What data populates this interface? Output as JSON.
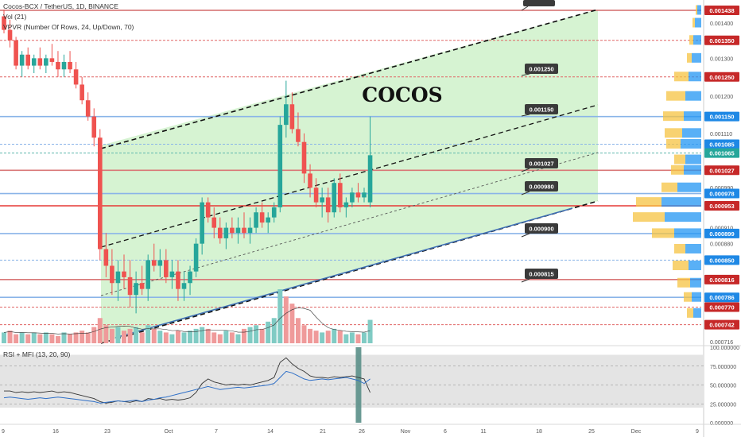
{
  "header": {
    "symbol_line": "Cocos-BCX / TetherUS, 1D, BINANCE",
    "vol_line": "Vol (21)",
    "vpvr_line": "VPVR (Number Of Rows, 24, Up/Down, 70)",
    "rsi_line": "RSI + MFI (13, 20, 90)"
  },
  "colors": {
    "up": "#26a69a",
    "down": "#ef5350",
    "channel_fill": "#c8efc3",
    "rsi_band": "#e4e4e4",
    "red_tag": "#c62828",
    "blue_tag": "#1e88e5",
    "teal_tag": "#26a69a",
    "callout_bg": "#3a3a3a"
  },
  "chart_data": {
    "type": "candlestick",
    "title": "COCOS",
    "x_tick_labels": [
      "9",
      "16",
      "23",
      "Oct",
      "7",
      "14",
      "21",
      "26",
      "Nov",
      "6",
      "11",
      "18",
      "25",
      "Dec",
      "9"
    ],
    "y_tick_labels": [
      "0.001400",
      "0.001300",
      "0.001200",
      "0.001110",
      "0.000990",
      "0.000910",
      "0.000880",
      "0.000716"
    ],
    "candles": [
      [
        0.00142,
        0.00144,
        0.00137,
        0.00138
      ],
      [
        0.00138,
        0.00141,
        0.00133,
        0.00135
      ],
      [
        0.00135,
        0.00136,
        0.00127,
        0.00128
      ],
      [
        0.00128,
        0.00132,
        0.00125,
        0.00131
      ],
      [
        0.00131,
        0.00133,
        0.00127,
        0.00128
      ],
      [
        0.00128,
        0.00131,
        0.00126,
        0.0013
      ],
      [
        0.0013,
        0.00133,
        0.00127,
        0.00128
      ],
      [
        0.00128,
        0.00131,
        0.00126,
        0.0013
      ],
      [
        0.0013,
        0.00134,
        0.00128,
        0.00129
      ],
      [
        0.00129,
        0.00132,
        0.00125,
        0.00127
      ],
      [
        0.00127,
        0.00131,
        0.00125,
        0.00129
      ],
      [
        0.00129,
        0.00132,
        0.00126,
        0.00127
      ],
      [
        0.00127,
        0.00129,
        0.00122,
        0.00123
      ],
      [
        0.00123,
        0.00125,
        0.00118,
        0.00119
      ],
      [
        0.00119,
        0.00121,
        0.00114,
        0.00115
      ],
      [
        0.00115,
        0.00117,
        0.00108,
        0.0011
      ],
      [
        0.0011,
        0.00112,
        0.00085,
        0.00087
      ],
      [
        0.00087,
        0.0009,
        0.00082,
        0.00084
      ],
      [
        0.00084,
        0.00087,
        0.00079,
        0.00081
      ],
      [
        0.00081,
        0.00085,
        0.00078,
        0.00083
      ],
      [
        0.00083,
        0.00086,
        0.0008,
        0.00082
      ],
      [
        0.00082,
        0.00085,
        0.00077,
        0.00079
      ],
      [
        0.00079,
        0.00083,
        0.00076,
        0.00081
      ],
      [
        0.00081,
        0.00084,
        0.00079,
        0.0008
      ],
      [
        0.0008,
        0.00086,
        0.00078,
        0.00085
      ],
      [
        0.00085,
        0.00088,
        0.00083,
        0.00084
      ],
      [
        0.00084,
        0.00087,
        0.00082,
        0.00085
      ],
      [
        0.00085,
        0.00087,
        0.00081,
        0.00082
      ],
      [
        0.00082,
        0.00085,
        0.0008,
        0.00083
      ],
      [
        0.00083,
        0.00085,
        0.00078,
        0.0008
      ],
      [
        0.0008,
        0.00083,
        0.00078,
        0.00081
      ],
      [
        0.00081,
        0.00084,
        0.00079,
        0.00083
      ],
      [
        0.00083,
        0.00089,
        0.00082,
        0.00088
      ],
      [
        0.00088,
        0.00097,
        0.00086,
        0.00096
      ],
      [
        0.00096,
        0.00097,
        0.00092,
        0.00093
      ],
      [
        0.00093,
        0.00095,
        0.00089,
        0.00091
      ],
      [
        0.00091,
        0.00093,
        0.00088,
        0.00089
      ],
      [
        0.00089,
        0.00092,
        0.00087,
        0.00091
      ],
      [
        0.00091,
        0.00093,
        0.00089,
        0.0009
      ],
      [
        0.0009,
        0.00093,
        0.00088,
        0.00091
      ],
      [
        0.00091,
        0.00094,
        0.00089,
        0.0009
      ],
      [
        0.0009,
        0.00093,
        0.00088,
        0.00091
      ],
      [
        0.00091,
        0.00095,
        0.0009,
        0.00094
      ],
      [
        0.00094,
        0.00096,
        0.00091,
        0.00092
      ],
      [
        0.00092,
        0.00094,
        0.0009,
        0.00093
      ],
      [
        0.00093,
        0.00096,
        0.00092,
        0.00095
      ],
      [
        0.00095,
        0.00115,
        0.00094,
        0.00113
      ],
      [
        0.00113,
        0.00124,
        0.0011,
        0.00118
      ],
      [
        0.00118,
        0.00121,
        0.00111,
        0.00112
      ],
      [
        0.00112,
        0.00116,
        0.00108,
        0.00109
      ],
      [
        0.00109,
        0.00111,
        0.001,
        0.00102
      ],
      [
        0.00102,
        0.00104,
        0.00097,
        0.00099
      ],
      [
        0.00099,
        0.00101,
        0.00095,
        0.00096
      ],
      [
        0.00096,
        0.00099,
        0.00093,
        0.00097
      ],
      [
        0.00097,
        0.00099,
        0.00092,
        0.00094
      ],
      [
        0.00094,
        0.00101,
        0.00093,
        0.001
      ],
      [
        0.001,
        0.00102,
        0.00094,
        0.00095
      ],
      [
        0.00095,
        0.00097,
        0.00093,
        0.00096
      ],
      [
        0.00096,
        0.00099,
        0.00095,
        0.00098
      ],
      [
        0.00098,
        0.001,
        0.00096,
        0.00097
      ],
      [
        0.00097,
        0.00099,
        0.00096,
        0.00098
      ],
      [
        0.00096,
        0.00115,
        0.00095,
        0.00106
      ]
    ],
    "volumes": [
      {
        "v": 6,
        "up": true
      },
      {
        "v": 7,
        "up": false
      },
      {
        "v": 5,
        "up": false
      },
      {
        "v": 6,
        "up": true
      },
      {
        "v": 5,
        "up": false
      },
      {
        "v": 6,
        "up": true
      },
      {
        "v": 5,
        "up": false
      },
      {
        "v": 6,
        "up": true
      },
      {
        "v": 5,
        "up": false
      },
      {
        "v": 4,
        "up": false
      },
      {
        "v": 6,
        "up": true
      },
      {
        "v": 5,
        "up": false
      },
      {
        "v": 6,
        "up": false
      },
      {
        "v": 7,
        "up": false
      },
      {
        "v": 6,
        "up": false
      },
      {
        "v": 9,
        "up": false
      },
      {
        "v": 14,
        "up": false
      },
      {
        "v": 10,
        "up": false
      },
      {
        "v": 8,
        "up": false
      },
      {
        "v": 9,
        "up": true
      },
      {
        "v": 7,
        "up": false
      },
      {
        "v": 8,
        "up": false
      },
      {
        "v": 9,
        "up": true
      },
      {
        "v": 6,
        "up": false
      },
      {
        "v": 10,
        "up": true
      },
      {
        "v": 8,
        "up": false
      },
      {
        "v": 7,
        "up": true
      },
      {
        "v": 6,
        "up": false
      },
      {
        "v": 5,
        "up": true
      },
      {
        "v": 7,
        "up": false
      },
      {
        "v": 6,
        "up": true
      },
      {
        "v": 7,
        "up": true
      },
      {
        "v": 8,
        "up": true
      },
      {
        "v": 9,
        "up": true
      },
      {
        "v": 8,
        "up": false
      },
      {
        "v": 6,
        "up": false
      },
      {
        "v": 5,
        "up": false
      },
      {
        "v": 7,
        "up": true
      },
      {
        "v": 6,
        "up": false
      },
      {
        "v": 5,
        "up": true
      },
      {
        "v": 8,
        "up": false
      },
      {
        "v": 9,
        "up": true
      },
      {
        "v": 10,
        "up": true
      },
      {
        "v": 8,
        "up": false
      },
      {
        "v": 12,
        "up": true
      },
      {
        "v": 14,
        "up": true
      },
      {
        "v": 30,
        "up": true
      },
      {
        "v": 26,
        "up": false
      },
      {
        "v": 22,
        "up": false
      },
      {
        "v": 14,
        "up": false
      },
      {
        "v": 10,
        "up": false
      },
      {
        "v": 8,
        "up": false
      },
      {
        "v": 7,
        "up": false
      },
      {
        "v": 6,
        "up": true
      },
      {
        "v": 7,
        "up": false
      },
      {
        "v": 8,
        "up": true
      },
      {
        "v": 7,
        "up": false
      },
      {
        "v": 5,
        "up": true
      },
      {
        "v": 6,
        "up": true
      },
      {
        "v": 5,
        "up": false
      },
      {
        "v": 6,
        "up": true
      },
      {
        "v": 13,
        "up": true
      }
    ],
    "vpvr": [
      {
        "price": 0.001438,
        "up": 5,
        "down": 2
      },
      {
        "price": 0.0014,
        "up": 8,
        "down": 3
      },
      {
        "price": 0.00135,
        "up": 10,
        "down": 5
      },
      {
        "price": 0.0013,
        "up": 12,
        "down": 6
      },
      {
        "price": 0.00125,
        "up": 16,
        "down": 18
      },
      {
        "price": 0.0012,
        "up": 20,
        "down": 24
      },
      {
        "price": 0.00115,
        "up": 22,
        "down": 26
      },
      {
        "price": 0.00111,
        "up": 24,
        "down": 22
      },
      {
        "price": 0.001085,
        "up": 26,
        "down": 18
      },
      {
        "price": 0.00105,
        "up": 20,
        "down": 14
      },
      {
        "price": 0.001027,
        "up": 22,
        "down": 16
      },
      {
        "price": 0.00099,
        "up": 30,
        "down": 20
      },
      {
        "price": 0.00096,
        "up": 50,
        "down": 32
      },
      {
        "price": 0.00093,
        "up": 46,
        "down": 40
      },
      {
        "price": 0.000899,
        "up": 34,
        "down": 28
      },
      {
        "price": 0.00087,
        "up": 20,
        "down": 14
      },
      {
        "price": 0.00084,
        "up": 16,
        "down": 20
      },
      {
        "price": 0.00081,
        "up": 14,
        "down": 16
      },
      {
        "price": 0.000786,
        "up": 12,
        "down": 10
      },
      {
        "price": 0.00076,
        "up": 10,
        "down": 8
      }
    ],
    "rsi": [
      42,
      42,
      40,
      41,
      40,
      41,
      40,
      41,
      42,
      40,
      41,
      40,
      38,
      36,
      34,
      32,
      28,
      26,
      27,
      29,
      28,
      27,
      29,
      28,
      32,
      31,
      32,
      30,
      31,
      30,
      31,
      33,
      40,
      52,
      58,
      54,
      52,
      50,
      51,
      50,
      51,
      50,
      52,
      54,
      56,
      60,
      80,
      86,
      78,
      72,
      68,
      62,
      60,
      60,
      59,
      61,
      60,
      61,
      62,
      60,
      58,
      40
    ],
    "mfi": [
      33,
      34,
      33,
      32,
      31,
      32,
      33,
      32,
      33,
      34,
      33,
      32,
      31,
      30,
      29,
      28,
      26,
      27,
      28,
      29,
      28,
      29,
      30,
      28,
      30,
      31,
      33,
      34,
      36,
      38,
      40,
      42,
      44,
      46,
      48,
      46,
      44,
      45,
      46,
      47,
      46,
      47,
      48,
      49,
      50,
      52,
      60,
      68,
      66,
      62,
      58,
      56,
      57,
      58,
      57,
      58,
      59,
      60,
      58,
      56,
      52,
      58
    ],
    "rsi_scale_labels": [
      "100.000000",
      "75.000000",
      "50.000000",
      "25.000000",
      "0.000000"
    ],
    "level_tags": [
      {
        "price": 0.001438,
        "label": "0.001438",
        "style": "red"
      },
      {
        "price": 0.00135,
        "label": "0.001350",
        "style": "red"
      },
      {
        "price": 0.00125,
        "label": "0.001250",
        "style": "red"
      },
      {
        "price": 0.00115,
        "label": "0.001150",
        "style": "blue"
      },
      {
        "price": 0.001085,
        "label": "0.001085",
        "style": "blue"
      },
      {
        "price": 0.001065,
        "label": "0.001065",
        "style": "teal"
      },
      {
        "price": 0.001027,
        "label": "0.001027",
        "style": "red"
      },
      {
        "price": 0.000978,
        "label": "0.000978",
        "style": "blue"
      },
      {
        "price": 0.000953,
        "label": "0.000953",
        "style": "red"
      },
      {
        "price": 0.000899,
        "label": "0.000899",
        "style": "blue"
      },
      {
        "price": 0.00085,
        "label": "0.000850",
        "style": "blue"
      },
      {
        "price": 0.000816,
        "label": "0.000816",
        "style": "red"
      },
      {
        "price": 0.000786,
        "label": "0.000786",
        "style": "blue"
      },
      {
        "price": 0.00077,
        "label": "0.000770",
        "style": "red"
      },
      {
        "price": 0.000742,
        "label": "0.000742",
        "style": "red"
      }
    ],
    "horizontal_lines": [
      {
        "price": 0.001438,
        "color": "#d36a6a",
        "dash": false
      },
      {
        "price": 0.00135,
        "color": "#e06666",
        "dash": true
      },
      {
        "price": 0.00125,
        "color": "#e06666",
        "dash": true
      },
      {
        "price": 0.00115,
        "color": "#8ab4e8",
        "dash": false
      },
      {
        "price": 0.001085,
        "color": "#8ab4e8",
        "dash": true
      },
      {
        "price": 0.001065,
        "color": "#5fb8ad",
        "dash": true
      },
      {
        "price": 0.001027,
        "color": "#d97777",
        "dash": false
      },
      {
        "price": 0.000978,
        "color": "#8ab4e8",
        "dash": false
      },
      {
        "price": 0.000953,
        "color": "#e53935",
        "dash": false
      },
      {
        "price": 0.000899,
        "color": "#8ab4e8",
        "dash": false
      },
      {
        "price": 0.00085,
        "color": "#8ab4e8",
        "dash": true
      },
      {
        "price": 0.000816,
        "color": "#d97777",
        "dash": false
      },
      {
        "price": 0.000786,
        "color": "#8ab4e8",
        "dash": false
      },
      {
        "price": 0.00077,
        "color": "#e06666",
        "dash": true
      },
      {
        "price": 0.000742,
        "color": "#e06666",
        "dash": true
      }
    ],
    "callouts": [
      {
        "label": "0.001250"
      },
      {
        "label": "0.001150"
      },
      {
        "label": "0.001027"
      },
      {
        "label": "0.000980"
      },
      {
        "label": "0.000900"
      },
      {
        "label": "0.000815"
      }
    ]
  }
}
